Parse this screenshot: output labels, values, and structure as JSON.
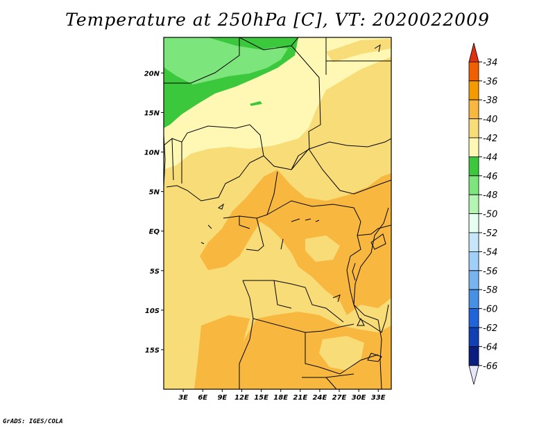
{
  "title": "Temperature at 250hPa [C], VT: 2020022009",
  "credit": "GrADS: IGES/COLA",
  "map": {
    "lon_range": [
      0,
      35
    ],
    "lat_range": [
      -20,
      24.5
    ],
    "lon_ticks": [
      {
        "value": 3,
        "label": "3E"
      },
      {
        "value": 6,
        "label": "6E"
      },
      {
        "value": 9,
        "label": "9E"
      },
      {
        "value": 12,
        "label": "12E"
      },
      {
        "value": 15,
        "label": "15E"
      },
      {
        "value": 18,
        "label": "18E"
      },
      {
        "value": 21,
        "label": "21E"
      },
      {
        "value": 24,
        "label": "24E"
      },
      {
        "value": 27,
        "label": "27E"
      },
      {
        "value": 30,
        "label": "30E"
      },
      {
        "value": 33,
        "label": "33E"
      }
    ],
    "lat_ticks": [
      {
        "value": 20,
        "label": "20N"
      },
      {
        "value": 15,
        "label": "15N"
      },
      {
        "value": 10,
        "label": "10N"
      },
      {
        "value": 5,
        "label": "5N"
      },
      {
        "value": 0,
        "label": "EQ"
      },
      {
        "value": -5,
        "label": "5S"
      },
      {
        "value": -10,
        "label": "10S"
      },
      {
        "value": -15,
        "label": "15S"
      }
    ]
  },
  "colorbar": {
    "labels": [
      "-34",
      "-36",
      "-38",
      "-40",
      "-42",
      "-44",
      "-46",
      "-48",
      "-50",
      "-52",
      "-54",
      "-56",
      "-58",
      "-60",
      "-62",
      "-64",
      "-66"
    ],
    "colors": [
      "#e03010",
      "#f06000",
      "#f59a00",
      "#f8b840",
      "#f8dc78",
      "#fff8b4",
      "#3cc83c",
      "#7ce67c",
      "#b4f5b4",
      "#e6fff0",
      "#c6e6fa",
      "#a0d0f8",
      "#78b4f0",
      "#4690e6",
      "#2064dc",
      "#1040b4",
      "#0a1e82",
      "#e6e6fa"
    ]
  }
}
